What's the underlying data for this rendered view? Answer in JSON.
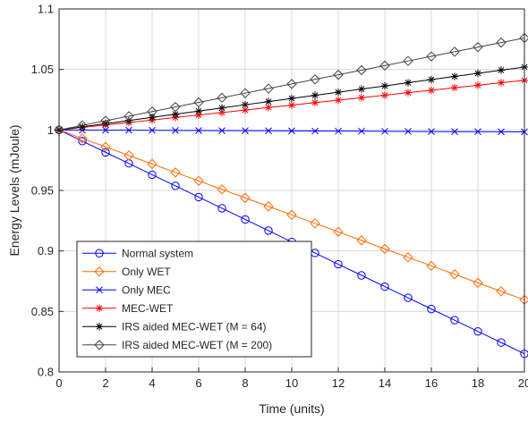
{
  "chart_data": {
    "type": "line",
    "title": "",
    "xlabel": "Time (units)",
    "ylabel": "Energy Levels (mJoule)",
    "xlim": [
      0,
      20
    ],
    "ylim": [
      0.8,
      1.1
    ],
    "grid": true,
    "legend_position": "bottom-left",
    "x": [
      0,
      1,
      2,
      3,
      4,
      5,
      6,
      7,
      8,
      9,
      10,
      11,
      12,
      13,
      14,
      15,
      16,
      17,
      18,
      19,
      20
    ],
    "xticks": [
      "0",
      "2",
      "4",
      "6",
      "8",
      "10",
      "12",
      "14",
      "16",
      "18",
      "20"
    ],
    "yticks": [
      "0.8",
      "0.85",
      "0.9",
      "0.95",
      "1",
      "1.05",
      "1.1"
    ],
    "series": [
      {
        "name": "Normal system",
        "color": "#0000ff",
        "marker": "circle",
        "values": [
          1.0,
          0.9908,
          0.9815,
          0.9723,
          0.963,
          0.9538,
          0.9445,
          0.9353,
          0.926,
          0.9168,
          0.9075,
          0.8983,
          0.889,
          0.8798,
          0.8705,
          0.8613,
          0.852,
          0.8428,
          0.8335,
          0.8243,
          0.815
        ]
      },
      {
        "name": "Only WET",
        "color": "#ff6a00",
        "marker": "diamond",
        "values": [
          1.0,
          0.993,
          0.986,
          0.9789,
          0.9719,
          0.9649,
          0.9579,
          0.9509,
          0.9438,
          0.9368,
          0.9298,
          0.9228,
          0.9158,
          0.9087,
          0.9017,
          0.8947,
          0.8877,
          0.8807,
          0.8736,
          0.8666,
          0.8596
        ]
      },
      {
        "name": "Only MEC",
        "color": "#0000ff",
        "marker": "x",
        "values": [
          1.0,
          0.9999,
          0.9998,
          0.9998,
          0.9997,
          0.9996,
          0.9995,
          0.9994,
          0.9994,
          0.9993,
          0.9992,
          0.9991,
          0.999,
          0.999,
          0.9989,
          0.9988,
          0.9987,
          0.9986,
          0.9986,
          0.9985,
          0.9984
        ]
      },
      {
        "name": "MEC-WET",
        "color": "#ff0000",
        "marker": "star",
        "values": [
          1.0,
          1.0021,
          1.0041,
          1.0062,
          1.0082,
          1.0103,
          1.0123,
          1.0144,
          1.0164,
          1.0185,
          1.0205,
          1.0226,
          1.0246,
          1.0267,
          1.0287,
          1.0308,
          1.0328,
          1.0349,
          1.0369,
          1.039,
          1.041
        ]
      },
      {
        "name": "IRS aided MEC-WET (M = 64)",
        "color": "#000000",
        "marker": "star",
        "values": [
          1.0,
          1.0026,
          1.0052,
          1.0078,
          1.0104,
          1.013,
          1.0156,
          1.0182,
          1.0208,
          1.0234,
          1.026,
          1.0286,
          1.0312,
          1.0338,
          1.0364,
          1.039,
          1.0416,
          1.0442,
          1.0468,
          1.0494,
          1.052
        ]
      },
      {
        "name": "IRS aided MEC-WET (M = 200)",
        "color": "#444444",
        "marker": "diamond",
        "values": [
          1.0,
          1.0038,
          1.0076,
          1.0114,
          1.0152,
          1.019,
          1.0228,
          1.0266,
          1.0304,
          1.0342,
          1.038,
          1.0418,
          1.0456,
          1.0494,
          1.0532,
          1.057,
          1.0608,
          1.0646,
          1.0684,
          1.0722,
          1.076
        ]
      }
    ]
  }
}
